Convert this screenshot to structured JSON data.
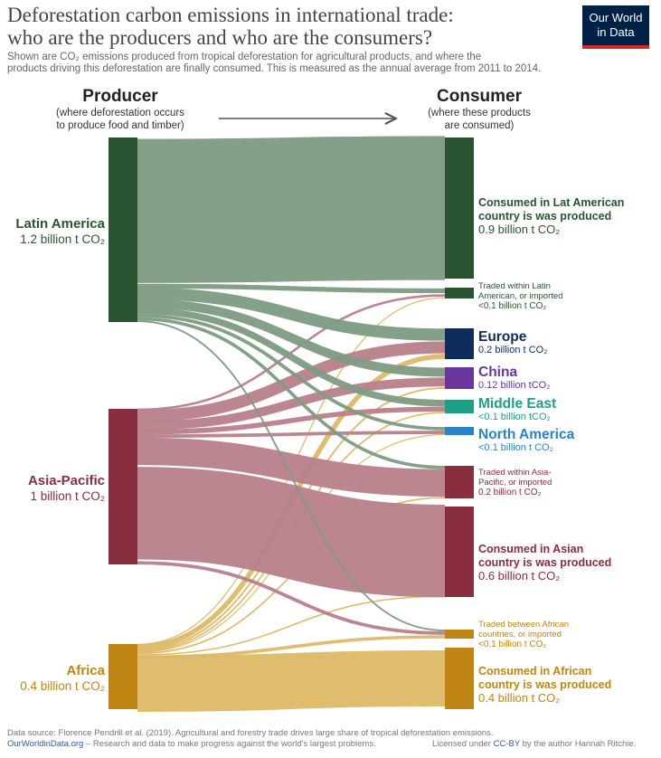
{
  "title": {
    "line1": "Deforestation carbon emissions in international trade:",
    "line2": "who are the producers and who are the consumers?"
  },
  "subtitle": {
    "line1": "Shown are CO₂ emissions produced from tropical deforestation for agricultural products, and where the",
    "line2": "products driving this deforestation are finally consumed.  This is measured as the annual average from 2011 to 2014."
  },
  "logo": {
    "line1": "Our World",
    "line2": "in Data"
  },
  "producer_header": {
    "title": "Producer",
    "sub1": "(where deforestation occurs",
    "sub2": "to produce food and timber)"
  },
  "consumer_header": {
    "title": "Consumer",
    "sub1": "(where these products",
    "sub2": "are consumed)"
  },
  "colors": {
    "latam": "#2a5431",
    "latam_link": "#7e9b82",
    "asia": "#882e3e",
    "asia_link": "#b7808a",
    "africa": "#c08512",
    "africa_link": "#ddb866",
    "europe": "#102c5b",
    "china": "#6a359c",
    "middle_east": "#1f9e85",
    "north_america": "#2c82c9"
  },
  "diagram": {
    "producers": [
      {
        "id": "latam",
        "name": "Latin America",
        "value_label": "1.2 billion t CO₂",
        "color": "#2a5431"
      },
      {
        "id": "asia",
        "name": "Asia-Pacific",
        "value_label": "1 billion t CO₂",
        "color": "#882e3e"
      },
      {
        "id": "africa",
        "name": "Africa",
        "value_label": "0.4 billion t CO₂",
        "color": "#c08512"
      }
    ],
    "consumers": [
      {
        "id": "c_latam",
        "lines": [
          "Consumed in Lat American",
          "country is was produced"
        ],
        "value_label": "0.9 billion t CO₂",
        "color": "#2a5431",
        "style": "mid"
      },
      {
        "id": "t_latam",
        "lines": [
          "Traded within Latin",
          "American, or imported"
        ],
        "value_label": "<0.1 billion t CO₂",
        "color": "#2a5431",
        "style": "small"
      },
      {
        "id": "europe",
        "lines": [
          "Europe"
        ],
        "value_label": "0.2 billion t CO₂",
        "color": "#102c5b",
        "style": "big"
      },
      {
        "id": "china",
        "lines": [
          "China"
        ],
        "value_label": "0.12 billion tCO₂",
        "color": "#6a359c",
        "style": "big"
      },
      {
        "id": "middle_east",
        "lines": [
          "Middle East"
        ],
        "value_label": "<0.1 billion tCO₂",
        "color": "#1f9e85",
        "style": "big"
      },
      {
        "id": "north_america",
        "lines": [
          "North America"
        ],
        "value_label": "<0.1 billion t CO₂",
        "color": "#2c82c9",
        "style": "big"
      },
      {
        "id": "t_asia",
        "lines": [
          "Traded within Asia-",
          "Pacific, or imported"
        ],
        "value_label": "0.2 billion t CO₂",
        "color": "#882e3e",
        "style": "small"
      },
      {
        "id": "c_asia",
        "lines": [
          "Consumed in Asian",
          "country is was produced"
        ],
        "value_label": "0.6 billion t CO₂",
        "color": "#882e3e",
        "style": "mid"
      },
      {
        "id": "t_africa",
        "lines": [
          "Traded between African",
          "countries, or imported"
        ],
        "value_label": "<0.1 billion t CO₂",
        "color": "#c08512",
        "style": "small"
      },
      {
        "id": "c_africa",
        "lines": [
          "Consumed in African",
          "country is was produced"
        ],
        "value_label": "0.4 billion t CO₂",
        "color": "#c08512",
        "style": "mid"
      }
    ],
    "flows": [
      {
        "from": "latam",
        "to": "c_latam",
        "value": 0.9
      },
      {
        "from": "latam",
        "to": "t_latam",
        "value": 0.02
      },
      {
        "from": "latam",
        "to": "europe",
        "value": 0.07
      },
      {
        "from": "latam",
        "to": "china",
        "value": 0.05
      },
      {
        "from": "latam",
        "to": "middle_east",
        "value": 0.04
      },
      {
        "from": "latam",
        "to": "north_america",
        "value": 0.02
      },
      {
        "from": "latam",
        "to": "t_asia",
        "value": 0.02
      },
      {
        "from": "latam",
        "to": "t_africa",
        "value": 0.01
      },
      {
        "from": "asia",
        "to": "t_latam",
        "value": 0.01
      },
      {
        "from": "asia",
        "to": "europe",
        "value": 0.07
      },
      {
        "from": "asia",
        "to": "china",
        "value": 0.05
      },
      {
        "from": "asia",
        "to": "middle_east",
        "value": 0.03
      },
      {
        "from": "asia",
        "to": "north_america",
        "value": 0.02
      },
      {
        "from": "asia",
        "to": "t_asia",
        "value": 0.17
      },
      {
        "from": "asia",
        "to": "c_asia",
        "value": 0.6
      },
      {
        "from": "asia",
        "to": "t_africa",
        "value": 0.02
      },
      {
        "from": "africa",
        "to": "t_latam",
        "value": 0.005
      },
      {
        "from": "africa",
        "to": "europe",
        "value": 0.03
      },
      {
        "from": "africa",
        "to": "china",
        "value": 0.01
      },
      {
        "from": "africa",
        "to": "middle_east",
        "value": 0.01
      },
      {
        "from": "africa",
        "to": "north_america",
        "value": 0.005
      },
      {
        "from": "africa",
        "to": "t_asia",
        "value": 0.01
      },
      {
        "from": "africa",
        "to": "c_asia",
        "value": 0.01
      },
      {
        "from": "africa",
        "to": "t_africa",
        "value": 0.02
      },
      {
        "from": "africa",
        "to": "c_africa",
        "value": 0.35
      }
    ]
  },
  "footer": {
    "source": "Data source: Florence Pendrill et al. (2019). Agricultural and forestry trade drives large share of tropical deforestation emissions.",
    "site": "OurWorldinData.org",
    "tagline": " – Research and data to make progress against the world's largest problems.",
    "license_prefix": "Licensed under ",
    "license": "CC-BY",
    "license_suffix": " by the author Hannah Ritchie."
  }
}
